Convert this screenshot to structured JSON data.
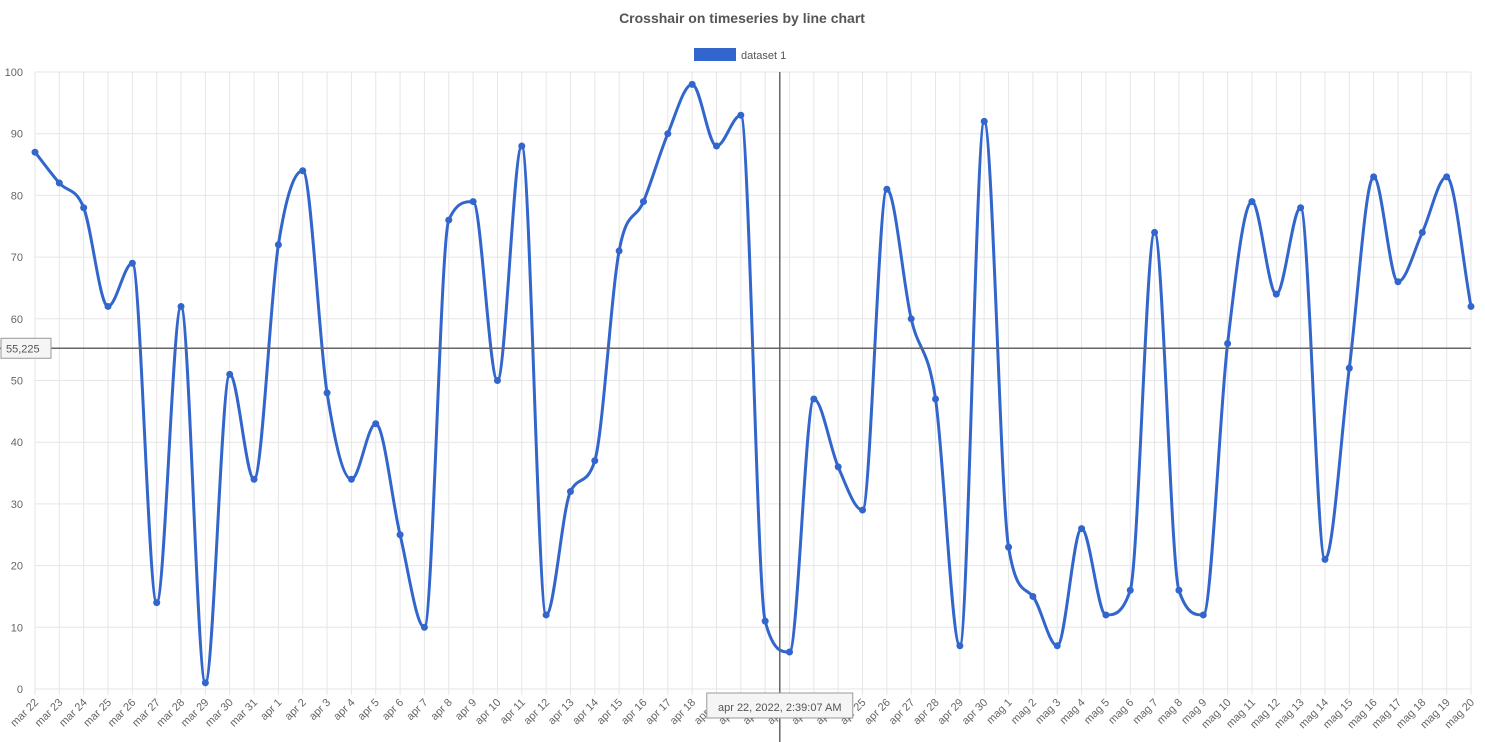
{
  "chart_data": {
    "type": "line",
    "title": "Crosshair on timeseries by line chart",
    "x": [
      "mar 22",
      "mar 23",
      "mar 24",
      "mar 25",
      "mar 26",
      "mar 27",
      "mar 28",
      "mar 29",
      "mar 30",
      "mar 31",
      "apr 1",
      "apr 2",
      "apr 3",
      "apr 4",
      "apr 5",
      "apr 6",
      "apr 7",
      "apr 8",
      "apr 9",
      "apr 10",
      "apr 11",
      "apr 12",
      "apr 13",
      "apr 14",
      "apr 15",
      "apr 16",
      "apr 17",
      "apr 18",
      "apr 19",
      "apr 20",
      "apr 21",
      "apr 22",
      "apr 23",
      "apr 24",
      "apr 25",
      "apr 26",
      "apr 27",
      "apr 28",
      "apr 29",
      "apr 30",
      "mag 1",
      "mag 2",
      "mag 3",
      "mag 4",
      "mag 5",
      "mag 6",
      "mag 7",
      "mag 8",
      "mag 9",
      "mag 10",
      "mag 11",
      "mag 12",
      "mag 13",
      "mag 14",
      "mag 15",
      "mag 16",
      "mag 17",
      "mag 18",
      "mag 19",
      "mag 20"
    ],
    "series": [
      {
        "name": "dataset 1",
        "color": "#3366cc",
        "values": [
          87,
          82,
          78,
          62,
          69,
          14,
          62,
          1,
          51,
          34,
          72,
          84,
          48,
          34,
          43,
          25,
          10,
          76,
          79,
          50,
          88,
          12,
          32,
          37,
          71,
          79,
          90,
          98,
          88,
          93,
          11,
          6,
          47,
          36,
          29,
          81,
          60,
          47,
          7,
          92,
          23,
          15,
          7,
          26,
          12,
          16,
          74,
          16,
          12,
          56,
          79,
          64,
          78,
          21,
          52,
          83,
          66,
          74,
          83,
          62
        ]
      }
    ],
    "ylim": [
      0,
      100
    ],
    "y_ticks": [
      0,
      10,
      20,
      30,
      40,
      50,
      60,
      70,
      80,
      90,
      100
    ],
    "grid": true,
    "legend": "top",
    "crosshair": {
      "x_label": "apr 22, 2022, 2:39:07 AM",
      "y_label": "55,225",
      "y_value": 55.225,
      "x_position": 30.6
    }
  }
}
